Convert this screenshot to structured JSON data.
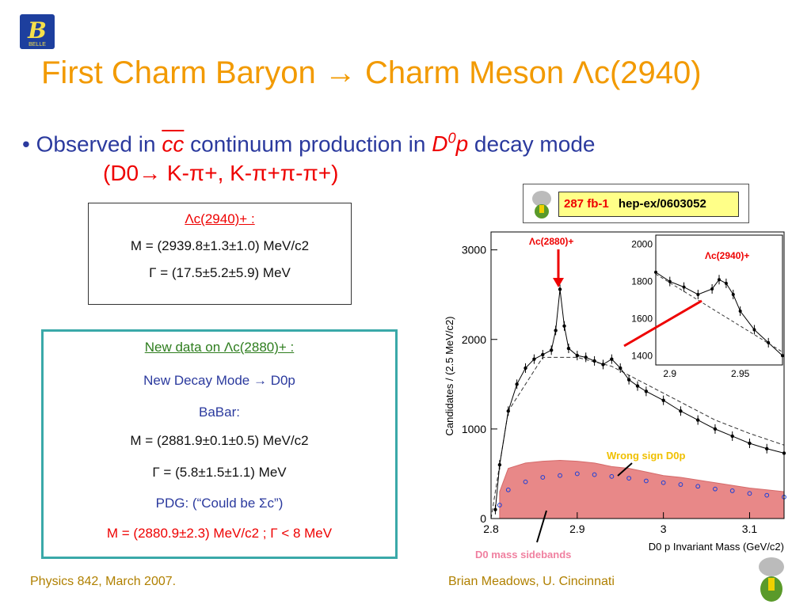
{
  "header": {
    "title": "First Charm Baryon → Charm Meson Λc(2940)",
    "logo_text": "BELLE"
  },
  "bullet": {
    "line1_a": "Observed in ",
    "line1_cc": "cc",
    "line1_b": " continuum production in ",
    "line1_d": "D",
    "line1_d_sup": "0",
    "line1_p": "p",
    "line1_c": " decay mode",
    "line2": "(D0→ K-π+, K-π+π-π+)"
  },
  "box1": {
    "title": "Λc(2940)+ :",
    "mass": "M = (2939.8±1.3±1.0) MeV/c2",
    "width": "Γ = (17.5±5.2±5.9) MeV"
  },
  "box2": {
    "title": "New data on Λc(2880)+ :",
    "decay_mode": "New Decay Mode → D0p",
    "babar": "BaBar:",
    "mass": "M = (2881.9±0.1±0.5) MeV/c2",
    "width": "Γ = (5.8±1.5±1.1) MeV",
    "pdg": "PDG: (“Could be Σc”)",
    "pdg_values": "M = (2880.9±2.3) MeV/c2 ;   Γ < 8 MeV"
  },
  "lumi": {
    "lumi": "287 fb-1",
    "ref": "hep-ex/0603052"
  },
  "plot_labels": {
    "peak_2880": "Λc(2880)+",
    "peak_2940": "Λc(2940)+",
    "wrong_sign": "Wrong sign D0p",
    "sidebands": "D0 mass sidebands"
  },
  "footer": {
    "left": "Physics 842, March 2007.",
    "right": "Brian Meadows, U. Cincinnati"
  },
  "chart_data": {
    "type": "scatter",
    "xlabel": "D0 p Invariant Mass (GeV/c2)",
    "ylabel": "Candidates / (2.5 MeV/c2)",
    "xlim": [
      2.8,
      3.14
    ],
    "ylim": [
      0,
      3200
    ],
    "x_ticks": [
      "2.8",
      "2.9",
      "3",
      "3.1"
    ],
    "y_ticks": [
      "0",
      "1000",
      "2000",
      "3000"
    ],
    "series": [
      {
        "x": [
          2.805,
          2.81,
          2.82,
          2.83,
          2.84,
          2.85,
          2.86,
          2.87,
          2.875,
          2.88,
          2.885,
          2.89,
          2.9,
          2.91,
          2.92,
          2.93,
          2.94,
          2.95,
          2.96,
          2.97,
          2.98,
          3.0,
          3.02,
          3.04,
          3.06,
          3.08,
          3.1,
          3.12,
          3.14
        ],
        "y": [
          100,
          600,
          1200,
          1500,
          1680,
          1780,
          1830,
          1880,
          2100,
          2560,
          2150,
          1900,
          1820,
          1800,
          1760,
          1720,
          1780,
          1680,
          1550,
          1480,
          1420,
          1320,
          1200,
          1100,
          1000,
          920,
          840,
          780,
          730
        ]
      },
      {
        "x": [
          2.8,
          2.82,
          2.86,
          2.9,
          2.94,
          2.98,
          3.02,
          3.06,
          3.1,
          3.14
        ],
        "y": [
          0,
          1200,
          1800,
          1800,
          1700,
          1500,
          1300,
          1100,
          950,
          820
        ]
      },
      {
        "x": [
          2.81,
          2.82,
          2.84,
          2.86,
          2.88,
          2.9,
          2.92,
          2.94,
          2.96,
          2.98,
          3.0,
          3.02,
          3.04,
          3.06,
          3.08,
          3.1,
          3.12,
          3.14
        ],
        "y": [
          150,
          320,
          410,
          460,
          480,
          500,
          490,
          470,
          450,
          420,
          400,
          380,
          360,
          330,
          310,
          280,
          260,
          240
        ]
      },
      {
        "x": [
          2.81,
          2.82,
          2.84,
          2.86,
          2.88,
          2.9,
          2.92,
          2.94,
          2.96,
          2.98,
          3.0,
          3.02,
          3.04,
          3.06,
          3.08,
          3.1,
          3.12,
          3.14
        ],
        "y": [
          300,
          560,
          620,
          640,
          650,
          640,
          620,
          580,
          560,
          520,
          480,
          460,
          430,
          400,
          370,
          340,
          320,
          300
        ]
      }
    ],
    "inset": {
      "xlim": [
        2.89,
        2.98
      ],
      "ylim": [
        1350,
        2050
      ],
      "x_ticks": [
        "2.9",
        "2.95"
      ],
      "y_ticks": [
        "1400",
        "1600",
        "1800",
        "2000"
      ],
      "x": [
        2.89,
        2.9,
        2.91,
        2.92,
        2.93,
        2.935,
        2.94,
        2.945,
        2.95,
        2.96,
        2.97,
        2.98
      ],
      "y": [
        1850,
        1800,
        1770,
        1730,
        1760,
        1810,
        1790,
        1730,
        1640,
        1540,
        1470,
        1400
      ]
    }
  }
}
